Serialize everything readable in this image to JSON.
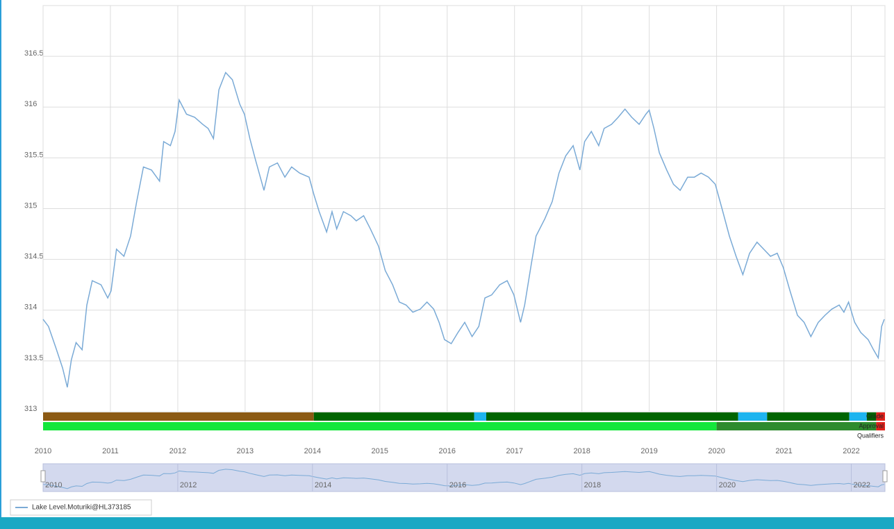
{
  "chart_data": {
    "type": "line",
    "series": [
      {
        "name": "Lake Level.Moturiki@HL373185",
        "color": "#7aaad6",
        "x": [
          2010.0,
          2010.08,
          2010.19,
          2010.29,
          2010.36,
          2010.42,
          2010.49,
          2010.58,
          2010.65,
          2010.73,
          2010.86,
          2010.96,
          2011.01,
          2011.09,
          2011.2,
          2011.3,
          2011.39,
          2011.49,
          2011.61,
          2011.73,
          2011.79,
          2011.89,
          2011.96,
          2012.02,
          2012.13,
          2012.25,
          2012.37,
          2012.45,
          2012.53,
          2012.61,
          2012.71,
          2012.81,
          2012.92,
          2012.99,
          2013.07,
          2013.15,
          2013.28,
          2013.36,
          2013.48,
          2013.59,
          2013.69,
          2013.81,
          2013.95,
          2014.02,
          2014.1,
          2014.21,
          2014.29,
          2014.36,
          2014.46,
          2014.57,
          2014.65,
          2014.76,
          2014.86,
          2014.98,
          2015.08,
          2015.19,
          2015.29,
          2015.39,
          2015.49,
          2015.6,
          2015.7,
          2015.8,
          2015.88,
          2015.96,
          2016.06,
          2016.16,
          2016.26,
          2016.37,
          2016.47,
          2016.56,
          2016.66,
          2016.78,
          2016.89,
          2016.99,
          2017.09,
          2017.15,
          2017.25,
          2017.32,
          2017.45,
          2017.56,
          2017.66,
          2017.76,
          2017.87,
          2017.97,
          2018.04,
          2018.14,
          2018.25,
          2018.33,
          2018.44,
          2018.54,
          2018.64,
          2018.74,
          2018.85,
          2018.95,
          2019.0,
          2019.07,
          2019.15,
          2019.26,
          2019.36,
          2019.46,
          2019.57,
          2019.67,
          2019.77,
          2019.88,
          2019.98,
          2020.08,
          2020.19,
          2020.29,
          2020.39,
          2020.49,
          2020.6,
          2020.7,
          2020.8,
          2020.9,
          2020.99,
          2021.09,
          2021.2,
          2021.3,
          2021.4,
          2021.51,
          2021.61,
          2021.71,
          2021.82,
          2021.89,
          2021.96,
          2022.05,
          2022.14,
          2022.25,
          2022.33,
          2022.4,
          2022.45,
          2022.49
        ],
        "values": [
          313.91,
          313.84,
          313.63,
          313.43,
          313.24,
          313.51,
          313.68,
          313.61,
          314.05,
          314.29,
          314.25,
          314.12,
          314.19,
          314.6,
          314.53,
          314.73,
          315.07,
          315.41,
          315.38,
          315.27,
          315.66,
          315.62,
          315.76,
          316.07,
          315.93,
          315.9,
          315.83,
          315.79,
          315.69,
          316.17,
          316.34,
          316.27,
          316.03,
          315.93,
          315.69,
          315.49,
          315.18,
          315.41,
          315.45,
          315.31,
          315.41,
          315.35,
          315.31,
          315.14,
          314.97,
          314.77,
          314.97,
          314.8,
          314.97,
          314.93,
          314.88,
          314.93,
          314.8,
          314.63,
          314.39,
          314.25,
          314.08,
          314.05,
          313.98,
          314.01,
          314.08,
          314.01,
          313.88,
          313.71,
          313.67,
          313.78,
          313.88,
          313.74,
          313.84,
          314.12,
          314.15,
          314.25,
          314.29,
          314.15,
          313.88,
          314.05,
          314.46,
          314.73,
          314.9,
          315.07,
          315.35,
          315.52,
          315.62,
          315.38,
          315.66,
          315.76,
          315.62,
          315.79,
          315.83,
          315.9,
          315.98,
          315.9,
          315.83,
          315.93,
          315.97,
          315.79,
          315.55,
          315.38,
          315.24,
          315.18,
          315.31,
          315.31,
          315.35,
          315.31,
          315.24,
          315.0,
          314.73,
          314.53,
          314.35,
          314.56,
          314.67,
          314.6,
          314.53,
          314.56,
          314.42,
          314.19,
          313.95,
          313.88,
          313.74,
          313.88,
          313.95,
          314.01,
          314.05,
          313.98,
          314.08,
          313.88,
          313.78,
          313.71,
          313.61,
          313.53,
          313.84,
          313.91
        ]
      }
    ],
    "xlim": [
      2010,
      2022.5
    ],
    "xticks": [
      2010,
      2011,
      2012,
      2013,
      2014,
      2015,
      2016,
      2017,
      2018,
      2019,
      2020,
      2021,
      2022
    ],
    "ylim": [
      313,
      317
    ],
    "yticks": [
      313,
      313.5,
      314,
      314.5,
      315,
      315.5,
      316,
      316.5
    ],
    "grid": true,
    "navigator_xticks": [
      2010,
      2012,
      2014,
      2016,
      2018,
      2020,
      2022
    ],
    "quality_bands": [
      {
        "label": "Grade",
        "segments": [
          {
            "start": 2010,
            "end": 2014.02,
            "color": "#8b5a14"
          },
          {
            "start": 2014.02,
            "end": 2016.4,
            "color": "#006400"
          },
          {
            "start": 2016.4,
            "end": 2016.58,
            "color": "#1eb4ef"
          },
          {
            "start": 2016.58,
            "end": 2020.32,
            "color": "#006400"
          },
          {
            "start": 2020.32,
            "end": 2020.75,
            "color": "#1eb4ef"
          },
          {
            "start": 2020.75,
            "end": 2021.97,
            "color": "#006400"
          },
          {
            "start": 2021.97,
            "end": 2022.23,
            "color": "#1eb4ef"
          },
          {
            "start": 2022.23,
            "end": 2022.37,
            "color": "#006400"
          },
          {
            "start": 2022.37,
            "end": 2022.5,
            "color": "#e0201a"
          }
        ]
      },
      {
        "label": "Approval",
        "segments": [
          {
            "start": 2010,
            "end": 2020,
            "color": "#14e63c"
          },
          {
            "start": 2020,
            "end": 2022.37,
            "color": "#2e8b2e"
          },
          {
            "start": 2022.37,
            "end": 2022.5,
            "color": "#e0201a"
          }
        ]
      },
      {
        "label": "Qualifiers",
        "segments": []
      }
    ]
  }
}
